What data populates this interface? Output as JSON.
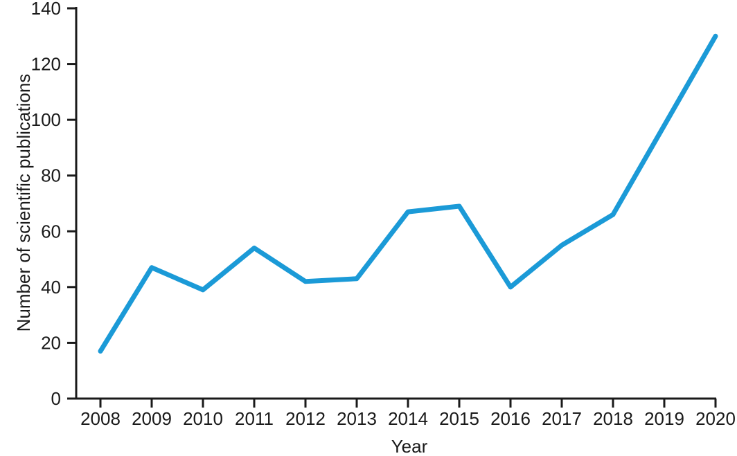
{
  "chart_data": {
    "type": "line",
    "title": "",
    "xlabel": "Year",
    "ylabel": "Number of scientific publications",
    "x": [
      2008,
      2009,
      2010,
      2011,
      2012,
      2013,
      2014,
      2015,
      2016,
      2017,
      2018,
      2019,
      2020
    ],
    "values": [
      17,
      47,
      39,
      54,
      42,
      43,
      67,
      69,
      40,
      55,
      66,
      98,
      130
    ],
    "ylim": [
      0,
      140
    ],
    "y_ticks": [
      0,
      20,
      40,
      60,
      80,
      100,
      120,
      140
    ],
    "grid": false,
    "legend": "none",
    "line_color": "#1b9ad7",
    "axis_color": "#1a1a1a",
    "text_color": "#1a1a1a"
  }
}
